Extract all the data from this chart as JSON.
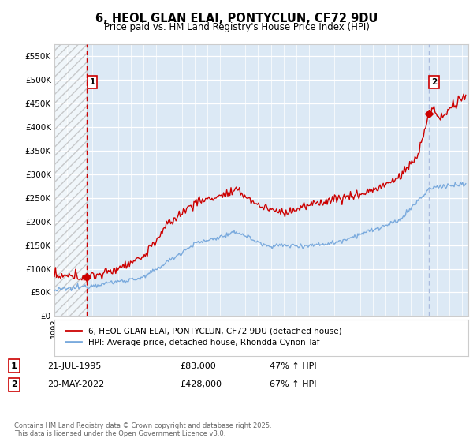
{
  "title": "6, HEOL GLAN ELAI, PONTYCLUN, CF72 9DU",
  "subtitle": "Price paid vs. HM Land Registry's House Price Index (HPI)",
  "ylim": [
    0,
    575000
  ],
  "yticks": [
    0,
    50000,
    100000,
    150000,
    200000,
    250000,
    300000,
    350000,
    400000,
    450000,
    500000,
    550000
  ],
  "ytick_labels": [
    "£0",
    "£50K",
    "£100K",
    "£150K",
    "£200K",
    "£250K",
    "£300K",
    "£350K",
    "£400K",
    "£450K",
    "£500K",
    "£550K"
  ],
  "plot_bg_color": "#dce9f5",
  "hpi_color": "#7aaadd",
  "price_color": "#cc0000",
  "vline2_color": "#aabbdd",
  "sale1_date_num": 1995.55,
  "sale1_price": 83000,
  "sale1_label": "21-JUL-1995",
  "sale1_hpi_pct": "47% ↑ HPI",
  "sale2_date_num": 2022.38,
  "sale2_price": 428000,
  "sale2_label": "20-MAY-2022",
  "sale2_hpi_pct": "67% ↑ HPI",
  "legend_line1": "6, HEOL GLAN ELAI, PONTYCLUN, CF72 9DU (detached house)",
  "legend_line2": "HPI: Average price, detached house, Rhondda Cynon Taf",
  "footnote": "Contains HM Land Registry data © Crown copyright and database right 2025.\nThis data is licensed under the Open Government Licence v3.0.",
  "xmin": 1993.0,
  "xmax": 2025.5
}
